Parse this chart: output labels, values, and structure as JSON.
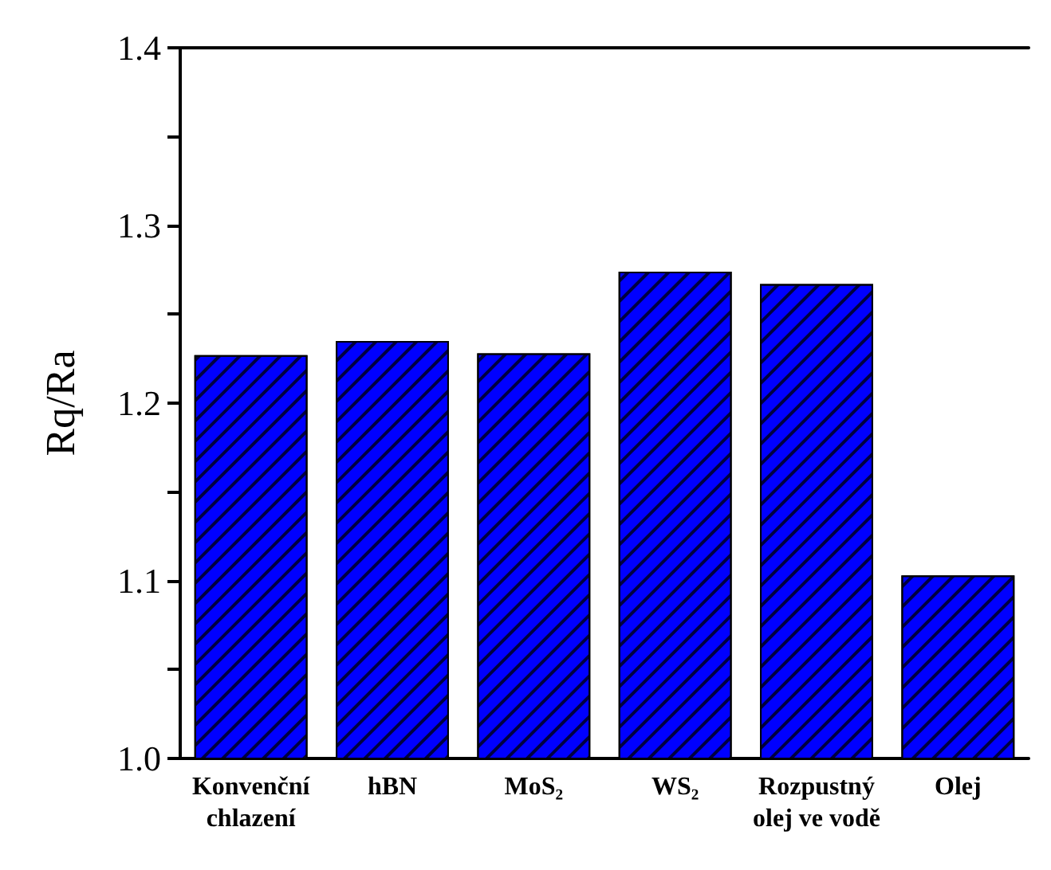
{
  "chart_data": {
    "type": "bar",
    "ylabel": "Rq/Ra",
    "categories": [
      "Konvenční\nchlazení",
      "hBN",
      "MoS₂",
      "WS₂",
      "Rozpustný\nolej ve vodě",
      "Olej"
    ],
    "values": [
      1.227,
      1.235,
      1.228,
      1.274,
      1.267,
      1.103
    ],
    "color": "#0000ff",
    "ylim": [
      1.0,
      1.4
    ],
    "yticks": [
      {
        "value": 1.0,
        "label": "1.0"
      },
      {
        "value": 1.05,
        "label": null
      },
      1.1,
      {
        "value": 1.15,
        "label": null
      },
      1.2,
      {
        "value": 1.25,
        "label": null
      },
      1.3,
      {
        "value": 1.35,
        "label": null
      },
      1.4
    ],
    "grid": false
  }
}
